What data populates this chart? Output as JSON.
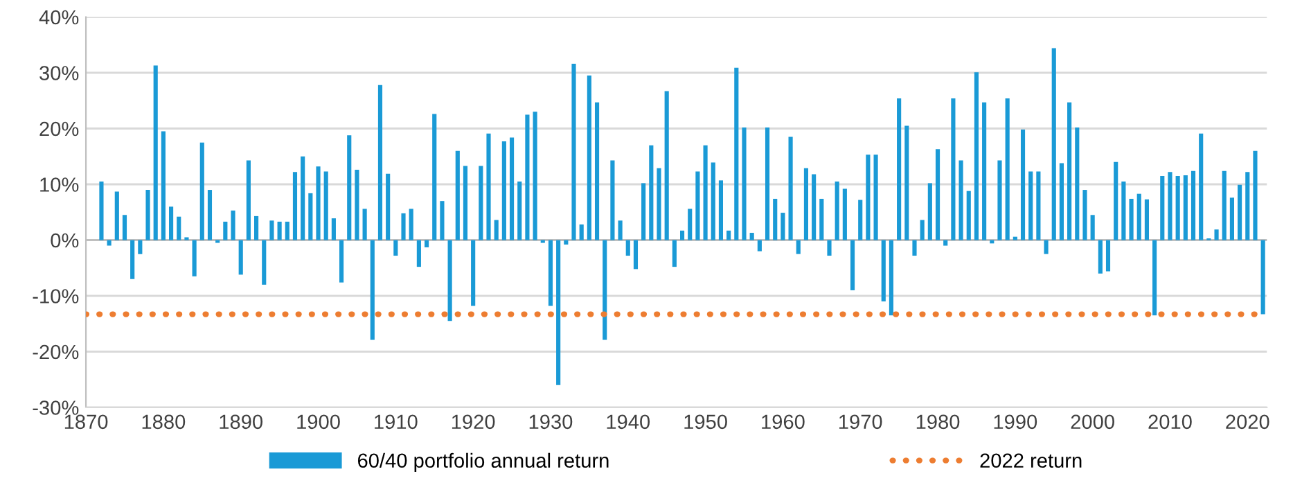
{
  "chart_data": {
    "type": "bar",
    "x": [
      1872,
      1873,
      1874,
      1875,
      1876,
      1877,
      1878,
      1879,
      1880,
      1881,
      1882,
      1883,
      1884,
      1885,
      1886,
      1887,
      1888,
      1889,
      1890,
      1891,
      1892,
      1893,
      1894,
      1895,
      1896,
      1897,
      1898,
      1899,
      1900,
      1901,
      1902,
      1903,
      1904,
      1905,
      1906,
      1907,
      1908,
      1909,
      1910,
      1911,
      1912,
      1913,
      1914,
      1915,
      1916,
      1917,
      1918,
      1919,
      1920,
      1921,
      1922,
      1923,
      1924,
      1925,
      1926,
      1927,
      1928,
      1929,
      1930,
      1931,
      1932,
      1933,
      1934,
      1935,
      1936,
      1937,
      1938,
      1939,
      1940,
      1941,
      1942,
      1943,
      1944,
      1945,
      1946,
      1947,
      1948,
      1949,
      1950,
      1951,
      1952,
      1953,
      1954,
      1955,
      1956,
      1957,
      1958,
      1959,
      1960,
      1961,
      1962,
      1963,
      1964,
      1965,
      1966,
      1967,
      1968,
      1969,
      1970,
      1971,
      1972,
      1973,
      1974,
      1975,
      1976,
      1977,
      1978,
      1979,
      1980,
      1981,
      1982,
      1983,
      1984,
      1985,
      1986,
      1987,
      1988,
      1989,
      1990,
      1991,
      1992,
      1993,
      1994,
      1995,
      1996,
      1997,
      1998,
      1999,
      2000,
      2001,
      2002,
      2003,
      2004,
      2005,
      2006,
      2007,
      2008,
      2009,
      2010,
      2011,
      2012,
      2013,
      2014,
      2015,
      2016,
      2017,
      2018,
      2019,
      2020,
      2021,
      2022
    ],
    "series": [
      {
        "name": "60/40 portfolio annual return",
        "color": "#1a9ad6",
        "values": [
          10.5,
          -1,
          8.7,
          4.5,
          -7,
          -2.5,
          9,
          31.3,
          19.5,
          6,
          4.2,
          0.5,
          -6.5,
          17.5,
          9,
          -0.5,
          3.3,
          5.3,
          -6.2,
          14.3,
          4.3,
          -8,
          3.5,
          3.3,
          3.3,
          12.2,
          15,
          8.4,
          13.2,
          12.3,
          3.9,
          -7.6,
          18.8,
          12.6,
          5.6,
          -17.9,
          27.8,
          11.9,
          -2.8,
          4.8,
          5.6,
          -4.8,
          -1.3,
          22.6,
          7,
          -14.5,
          16,
          13.3,
          -11.8,
          13.3,
          19.1,
          3.6,
          17.7,
          18.4,
          10.5,
          22.5,
          23,
          -0.5,
          -11.8,
          -26,
          -0.8,
          31.6,
          2.8,
          29.5,
          24.7,
          -17.9,
          14.3,
          3.5,
          -2.8,
          -5.2,
          10.2,
          17,
          12.9,
          26.7,
          -4.8,
          1.7,
          5.6,
          12.3,
          17,
          13.9,
          10.7,
          1.7,
          30.9,
          20.2,
          1.3,
          -2,
          20.2,
          7.4,
          4.9,
          18.5,
          -2.5,
          12.9,
          11.8,
          7.4,
          -2.8,
          10.5,
          9.2,
          -9,
          7.2,
          15.3,
          15.3,
          -11,
          -13.5,
          25.4,
          20.5,
          -2.8,
          3.6,
          10.2,
          16.3,
          -1,
          25.4,
          14.3,
          8.8,
          30.1,
          24.7,
          -0.6,
          14.3,
          25.4,
          0.6,
          19.8,
          12.3,
          12.3,
          -2.5,
          34.4,
          13.8,
          24.7,
          20.2,
          9,
          4.5,
          -6,
          -5.6,
          14,
          10.5,
          7.4,
          8.3,
          7.3,
          -13.5,
          11.5,
          12.2,
          11.5,
          11.6,
          12.4,
          19.1,
          0.3,
          1.9,
          12.4,
          7.6,
          9.9,
          12.2,
          16,
          -13.3
        ]
      }
    ],
    "ref_lines": [
      {
        "axis": "y",
        "value": -13.3,
        "label": "2022 return",
        "color": "#ed7d31",
        "line_style": "dotted"
      }
    ],
    "xlim": [
      1870,
      2022.5
    ],
    "xticks": [
      1870,
      1880,
      1890,
      1900,
      1910,
      1920,
      1930,
      1940,
      1950,
      1960,
      1970,
      1980,
      1990,
      2000,
      2010,
      2020
    ],
    "ylim": [
      -30,
      40
    ],
    "yticks": [
      {
        "value": -30,
        "label": "-30%"
      },
      {
        "value": -20,
        "label": "-20%"
      },
      {
        "value": -10,
        "label": "-10%"
      },
      {
        "value": 0,
        "label": "0%"
      },
      {
        "value": 10,
        "label": "10%"
      },
      {
        "value": 20,
        "label": "20%"
      },
      {
        "value": 30,
        "label": "30%"
      },
      {
        "value": 40,
        "label": "40%"
      }
    ],
    "grid": "y",
    "legend": "bottom"
  }
}
